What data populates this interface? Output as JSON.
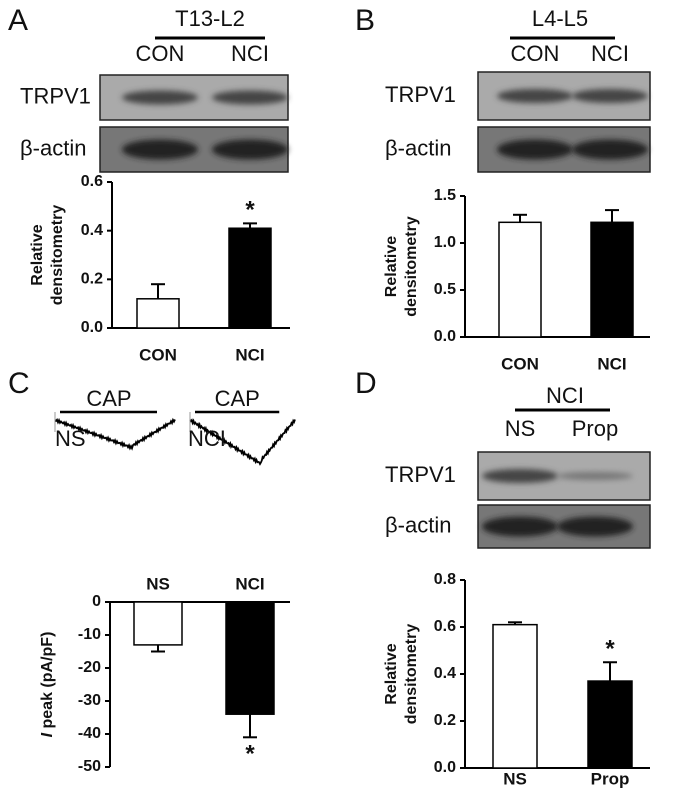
{
  "chart_data": [
    {
      "type": "bar",
      "panel": "A",
      "blot": {
        "group": "T13-L2",
        "lanes": [
          "CON",
          "NCI"
        ],
        "rows": [
          "TRPV1",
          "β-actin"
        ]
      },
      "categories": [
        "CON",
        "NCI"
      ],
      "values": [
        0.12,
        0.41
      ],
      "errors": [
        0.06,
        0.02
      ],
      "colors": [
        "#ffffff",
        "#000000"
      ],
      "ylim": [
        0,
        0.6
      ],
      "yticks": [
        {
          "value": 0,
          "label": "0.0"
        },
        0.2,
        0.4,
        0.6
      ],
      "ylabel": [
        "Relative",
        "densitometry"
      ],
      "annotations": [
        {
          "text": "*",
          "category": "NCI"
        }
      ]
    },
    {
      "type": "bar",
      "panel": "B",
      "blot": {
        "group": "L4-L5",
        "lanes": [
          "CON",
          "NCI"
        ],
        "rows": [
          "TRPV1",
          "β-actin"
        ]
      },
      "categories": [
        "CON",
        "NCI"
      ],
      "values": [
        1.22,
        1.22
      ],
      "errors": [
        0.08,
        0.13
      ],
      "colors": [
        "#ffffff",
        "#000000"
      ],
      "ylim": [
        0,
        1.5
      ],
      "yticks": [
        {
          "value": 0,
          "label": "0.0"
        },
        0.5,
        {
          "value": 1,
          "label": "1.0"
        },
        1.5
      ],
      "ylabel": [
        "Relative",
        "densitometry"
      ],
      "annotations": []
    },
    {
      "type": "bar",
      "panel": "C",
      "recordings": [
        {
          "stimulus": "CAP",
          "label": "NS"
        },
        {
          "stimulus": "CAP",
          "label": "NCI"
        }
      ],
      "categories": [
        "NS",
        "NCI"
      ],
      "values": [
        -13,
        -34
      ],
      "errors": [
        2,
        7
      ],
      "colors": [
        "#ffffff",
        "#000000"
      ],
      "ylim": [
        -50,
        0
      ],
      "yticks": [
        0,
        -10,
        -20,
        -30,
        -40,
        -50
      ],
      "ylabel": {
        "italic": "I",
        "text": " peak (pA/pF)"
      },
      "annotations": [
        {
          "text": "*",
          "category": "NCI"
        }
      ]
    },
    {
      "type": "bar",
      "panel": "D",
      "blot": {
        "group": "NCI",
        "lanes": [
          "NS",
          "Prop"
        ],
        "rows": [
          "TRPV1",
          "β-actin"
        ]
      },
      "categories": [
        "NS",
        "Prop"
      ],
      "values": [
        0.61,
        0.37
      ],
      "errors": [
        0.01,
        0.08
      ],
      "colors": [
        "#ffffff",
        "#000000"
      ],
      "ylim": [
        0,
        0.8
      ],
      "yticks": [
        {
          "value": 0,
          "label": "0.0"
        },
        0.2,
        0.4,
        0.6,
        0.8
      ],
      "ylabel": [
        "Relative",
        "densitometry"
      ],
      "annotations": [
        {
          "text": "*",
          "category": "Prop"
        }
      ]
    }
  ]
}
